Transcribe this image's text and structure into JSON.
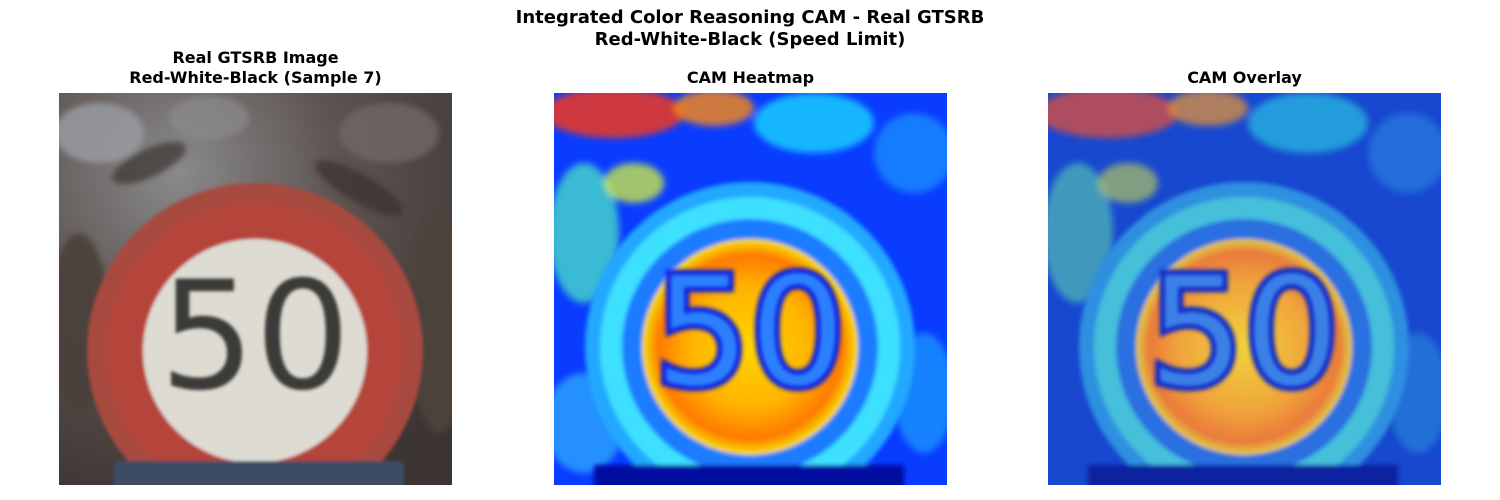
{
  "figure": {
    "suptitle_line1": "Integrated Color Reasoning CAM - Real GTSRB",
    "suptitle_line2": "Red-White-Black (Speed Limit)"
  },
  "panels": [
    {
      "title_line1": "Real GTSRB Image",
      "title_line2": "Red-White-Black (Sample 7)",
      "image": "speed-limit-sign-photo"
    },
    {
      "title_line1": "CAM Heatmap",
      "image": "cam-heatmap-jet-colormap"
    },
    {
      "title_line1": "CAM Overlay",
      "image": "cam-overlay-blended"
    }
  ],
  "sign_text": "50"
}
